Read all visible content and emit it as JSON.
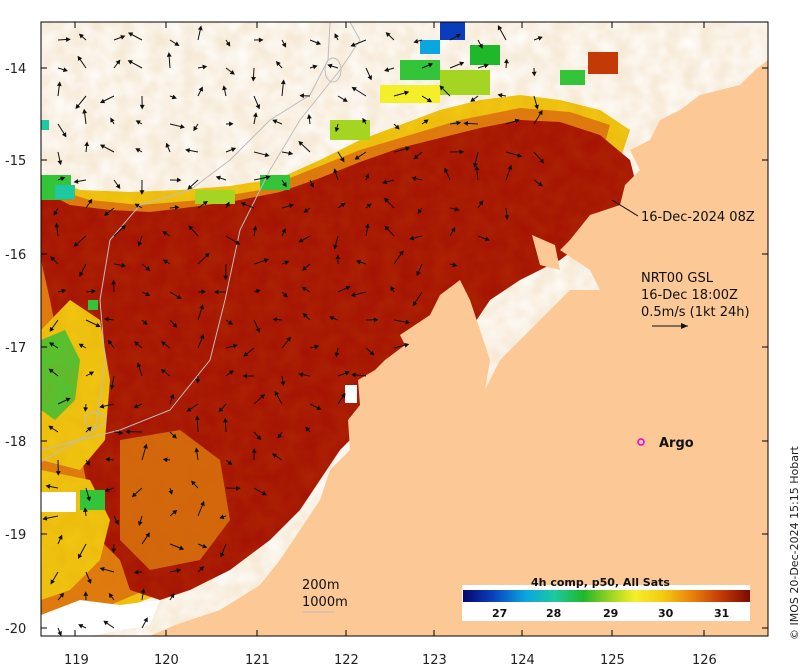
{
  "map": {
    "latitude_labels": [
      "-14",
      "-15",
      "-16",
      "-17",
      "-18",
      "-19",
      "-20"
    ],
    "longitude_labels": [
      "119",
      "120",
      "121",
      "122",
      "123",
      "124",
      "125",
      "126"
    ],
    "timestamp_label": "16-Dec-2024 08Z",
    "current_label": {
      "line1": "NRT00 GSL",
      "line2": "16-Dec 18:00Z",
      "line3": "0.5m/s (1kt 24h)"
    },
    "argo_label": "Argo",
    "contour_labels": {
      "shallow": "200m",
      "deep": "1000m"
    },
    "colorbar": {
      "title": "4h comp, p50, All Sats",
      "ticks": [
        "27",
        "28",
        "29",
        "30",
        "31"
      ]
    },
    "credit": "© IMOS 20-Dec-2024 15:15 Hobart",
    "colors": {
      "land": "#fbc896",
      "hot": "#a50f04",
      "orange": "#e07a10",
      "yellow": "#f2c811",
      "green": "#33c43a",
      "argo": "#e000e0"
    }
  }
}
